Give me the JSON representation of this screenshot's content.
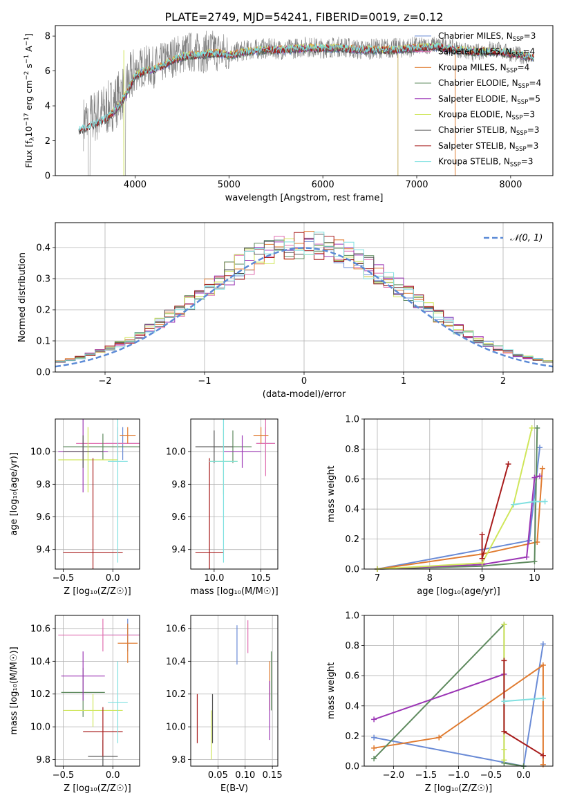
{
  "figure_title": "PLATE=2749, MJD=54241, FIBERID=0019, z=0.12",
  "models": [
    {
      "name": "Chabrier MILES",
      "nssp": "3",
      "color": "#6a8bd6"
    },
    {
      "name": "Salpeter MILES",
      "nssp": "4",
      "color": "#e06fb0"
    },
    {
      "name": "Kroupa MILES",
      "nssp": "4",
      "color": "#e07b30"
    },
    {
      "name": "Chabrier ELODIE",
      "nssp": "4",
      "color": "#5e8a5e"
    },
    {
      "name": "Salpeter ELODIE",
      "nssp": "5",
      "color": "#9b35b5"
    },
    {
      "name": "Kroupa ELODIE",
      "nssp": "3",
      "color": "#cfe65a"
    },
    {
      "name": "Chabrier STELIB",
      "nssp": "3",
      "color": "#555555"
    },
    {
      "name": "Salpeter STELIB",
      "nssp": "3",
      "color": "#a81c1c"
    },
    {
      "name": "Kroupa STELIB",
      "nssp": "3",
      "color": "#7fe0e0"
    }
  ],
  "legend_label_template": "{name}, N",
  "legend_sub": "SSP",
  "chart_data": [
    {
      "id": "spectrum",
      "type": "line",
      "xlabel": "wavelength [Angstrom, rest frame]",
      "ylabel": "Flux [f",
      "ylabel_parts": [
        "Flux [f",
        "λ",
        "10",
        "−17",
        " erg cm",
        "−2",
        " s",
        "−1",
        " A",
        "−1",
        "]"
      ],
      "xlim": [
        3150,
        8450
      ],
      "ylim": [
        0,
        8.6
      ],
      "xticks": [
        4000,
        5000,
        6000,
        7000,
        8000
      ],
      "yticks": [
        0,
        2,
        4,
        6,
        8
      ],
      "legend_position": "top-right",
      "data_curve": {
        "name": "data",
        "color": "#7f7f7f",
        "x": [
          3450,
          3500,
          3550,
          3600,
          3700,
          3800,
          3900,
          4000,
          4100,
          4200,
          4300,
          4400,
          4500,
          4600,
          4700,
          4800,
          4900,
          5000,
          5200,
          5400,
          5600,
          5800,
          6000,
          6200,
          6400,
          6600,
          6800,
          7000,
          7200,
          7400,
          7600,
          7800,
          8000,
          8200
        ],
        "y": [
          3.0,
          3.2,
          3.3,
          3.5,
          3.8,
          4.3,
          5.0,
          6.0,
          6.3,
          6.2,
          6.5,
          6.8,
          7.0,
          7.1,
          7.0,
          7.2,
          7.1,
          7.0,
          7.2,
          7.3,
          7.2,
          7.4,
          7.3,
          7.4,
          7.2,
          7.3,
          7.3,
          7.4,
          7.5,
          7.3,
          7.0,
          7.3,
          7.0,
          6.8
        ]
      },
      "model_curve": {
        "x": [
          3400,
          3500,
          3600,
          3700,
          3800,
          3900,
          4000,
          4100,
          4200,
          4300,
          4400,
          4500,
          4600,
          4700,
          4800,
          4900,
          5000,
          5200,
          5400,
          5600,
          5800,
          6000,
          6200,
          6400,
          6600,
          6800,
          7000,
          7200,
          7400,
          7600,
          7800,
          8000,
          8200
        ],
        "y": [
          2.6,
          2.8,
          3.0,
          3.3,
          3.8,
          4.6,
          5.7,
          6.0,
          6.1,
          6.3,
          6.6,
          6.8,
          6.9,
          6.9,
          7.0,
          7.0,
          6.9,
          7.1,
          7.2,
          7.2,
          7.3,
          7.3,
          7.3,
          7.2,
          7.2,
          7.2,
          7.3,
          7.4,
          7.2,
          7.1,
          7.1,
          7.0,
          6.8
        ]
      }
    },
    {
      "id": "residuals",
      "type": "histogram",
      "xlabel": "(data-model)/error",
      "ylabel": "Normed distribution",
      "xlim": [
        -2.5,
        2.5
      ],
      "ylim": [
        0,
        0.48
      ],
      "xticks": [
        -2,
        -1,
        0,
        1,
        2
      ],
      "yticks": [
        0.0,
        0.1,
        0.2,
        0.3,
        0.4
      ],
      "gaussian_label": "𝒩(0, 1)",
      "gaussian_color": "#5b8ad6",
      "bin_width": 0.1,
      "legend_position": "top-right"
    },
    {
      "id": "age-vs-Z",
      "type": "scatter",
      "xlabel": "Z [log₁₀(Z/Z☉)]",
      "ylabel": "age  [log₁₀(age/yr)]",
      "xlim": [
        -0.58,
        0.27
      ],
      "ylim": [
        9.28,
        10.2
      ],
      "xticks": [
        -0.5,
        0.0
      ],
      "yticks": [
        9.4,
        9.6,
        9.8,
        10.0
      ],
      "points": [
        {
          "x": 0.1,
          "y": 10.05,
          "xerr": 0.17,
          "yerr": 0.1
        },
        {
          "x": 0.05,
          "y": 10.05,
          "xerr": 0.42,
          "yerr": 0.1
        },
        {
          "x": 0.15,
          "y": 10.1,
          "xerr": 0.08,
          "yerr": 0.05
        },
        {
          "x": -0.1,
          "y": 10.03,
          "xerr": 0.4,
          "yerr": 0.08
        },
        {
          "x": -0.3,
          "y": 10.0,
          "xerr": 0.25,
          "yerr": 0.25
        },
        {
          "x": -0.25,
          "y": 9.95,
          "xerr": 0.3,
          "yerr": 0.2
        },
        {
          "x": -0.3,
          "y": 10.0,
          "xerr": 0.2,
          "yerr": 0.1
        },
        {
          "x": -0.2,
          "y": 9.38,
          "xerr": 0.3,
          "yerr": 0.58
        },
        {
          "x": 0.05,
          "y": 9.94,
          "xerr": 0.1,
          "yerr": 0.62
        }
      ]
    },
    {
      "id": "age-vs-mass",
      "type": "scatter",
      "xlabel": "mass [log₁₀(M/M☉)]",
      "ylabel": "",
      "xlim": [
        9.75,
        10.68
      ],
      "ylim": [
        9.28,
        10.2
      ],
      "xticks": [
        10.0,
        10.5
      ],
      "yticks": [
        9.4,
        9.6,
        9.8,
        10.0
      ],
      "points": [
        {
          "x": 10.55,
          "y": 10.05,
          "xerr": 0.1,
          "yerr": 0.1
        },
        {
          "x": 10.55,
          "y": 10.05,
          "xerr": 0.1,
          "yerr": 0.2
        },
        {
          "x": 10.5,
          "y": 10.1,
          "xerr": 0.08,
          "yerr": 0.05
        },
        {
          "x": 10.2,
          "y": 10.03,
          "xerr": 0.2,
          "yerr": 0.1
        },
        {
          "x": 10.3,
          "y": 10.0,
          "xerr": 0.2,
          "yerr": 0.1
        },
        {
          "x": 10.1,
          "y": 9.94,
          "xerr": 0.15,
          "yerr": 0.2
        },
        {
          "x": 10.0,
          "y": 10.03,
          "xerr": 0.2,
          "yerr": 0.1
        },
        {
          "x": 9.95,
          "y": 9.38,
          "xerr": 0.15,
          "yerr": 0.58
        },
        {
          "x": 10.1,
          "y": 9.94,
          "xerr": 0.15,
          "yerr": 0.62
        }
      ]
    },
    {
      "id": "weight-vs-age",
      "type": "line",
      "xlabel": "age  [log₁₀(age/yr)]",
      "ylabel": "mass weight",
      "xlim": [
        6.75,
        10.35
      ],
      "ylim": [
        0,
        1
      ],
      "xticks": [
        7,
        8,
        9,
        10
      ],
      "yticks": [
        0.0,
        0.2,
        0.4,
        0.6,
        0.8,
        1.0
      ],
      "series": [
        {
          "name": "Chabrier MILES",
          "x": [
            7.0,
            9.0,
            9.9,
            10.1
          ],
          "y": [
            0.0,
            0.13,
            0.19,
            0.81
          ]
        },
        {
          "name": "Kroupa MILES",
          "x": [
            7.0,
            9.0,
            10.05,
            10.15
          ],
          "y": [
            0.0,
            0.1,
            0.18,
            0.67
          ]
        },
        {
          "name": "Chabrier ELODIE",
          "x": [
            7.0,
            9.0,
            10.0,
            10.05
          ],
          "y": [
            0.0,
            0.02,
            0.05,
            0.94
          ]
        },
        {
          "name": "Salpeter ELODIE",
          "x": [
            7.0,
            9.0,
            9.85,
            10.0,
            10.1
          ],
          "y": [
            0.0,
            0.03,
            0.08,
            0.61,
            0.62
          ]
        },
        {
          "name": "Kroupa ELODIE",
          "x": [
            7.0,
            9.0,
            9.6,
            9.95
          ],
          "y": [
            0.0,
            0.04,
            0.43,
            0.94
          ]
        },
        {
          "name": "Salpeter STELIB",
          "x": [
            9.0,
            9.0,
            9.5
          ],
          "y": [
            0.23,
            0.07,
            0.7
          ]
        },
        {
          "name": "Kroupa STELIB",
          "x": [
            9.6,
            10.0,
            10.2
          ],
          "y": [
            0.43,
            0.45,
            0.45
          ]
        }
      ]
    },
    {
      "id": "mass-vs-Z",
      "type": "scatter",
      "xlabel": "Z [log₁₀(Z/Z☉)]",
      "ylabel": "mass [log₁₀(M/M☉)]",
      "xlim": [
        -0.58,
        0.27
      ],
      "ylim": [
        9.76,
        10.68
      ],
      "xticks": [
        -0.5,
        0.0
      ],
      "yticks": [
        9.8,
        10.0,
        10.2,
        10.4,
        10.6
      ],
      "points": [
        {
          "x": 0.15,
          "y": 10.56,
          "xerr": 0.25,
          "yerr": 0.1
        },
        {
          "x": -0.1,
          "y": 10.56,
          "xerr": 0.45,
          "yerr": 0.1
        },
        {
          "x": 0.15,
          "y": 10.51,
          "xerr": 0.1,
          "yerr": 0.12
        },
        {
          "x": -0.3,
          "y": 10.21,
          "xerr": 0.22,
          "yerr": 0.15
        },
        {
          "x": -0.3,
          "y": 10.31,
          "xerr": 0.22,
          "yerr": 0.15
        },
        {
          "x": -0.2,
          "y": 10.1,
          "xerr": 0.3,
          "yerr": 0.1
        },
        {
          "x": -0.1,
          "y": 9.82,
          "xerr": 0.15,
          "yerr": 0.1
        },
        {
          "x": -0.1,
          "y": 9.97,
          "xerr": 0.2,
          "yerr": 0.15
        },
        {
          "x": 0.05,
          "y": 10.15,
          "xerr": 0.1,
          "yerr": 0.25
        }
      ]
    },
    {
      "id": "mass-vs-ebv",
      "type": "scatter",
      "xlabel": "E(B-V)",
      "ylabel": "",
      "xlim": [
        0.0,
        0.16
      ],
      "ylim": [
        9.76,
        10.68
      ],
      "xticks": [
        0.05,
        0.1,
        0.15
      ],
      "yticks": [
        9.8,
        10.0,
        10.2,
        10.4,
        10.6
      ],
      "points": [
        {
          "x": 0.085,
          "y": 10.5,
          "yerr": 0.12
        },
        {
          "x": 0.105,
          "y": 10.55,
          "yerr": 0.1
        },
        {
          "x": 0.145,
          "y": 10.25,
          "yerr": 0.15
        },
        {
          "x": 0.148,
          "y": 10.28,
          "yerr": 0.18
        },
        {
          "x": 0.145,
          "y": 10.1,
          "yerr": 0.18
        },
        {
          "x": 0.038,
          "y": 9.95,
          "yerr": 0.15
        },
        {
          "x": 0.04,
          "y": 10.05,
          "yerr": 0.15
        },
        {
          "x": 0.012,
          "y": 10.05,
          "yerr": 0.15
        }
      ]
    },
    {
      "id": "weight-vs-Z",
      "type": "line",
      "xlabel": "Z [log₁₀(Z/Z☉)]",
      "ylabel": "mass weight",
      "xlim": [
        -2.45,
        0.45
      ],
      "ylim": [
        0,
        1
      ],
      "xticks": [
        -2.0,
        -1.5,
        -1.0,
        -0.5,
        0.0
      ],
      "yticks": [
        0.0,
        0.2,
        0.4,
        0.6,
        0.8,
        1.0
      ],
      "series": [
        {
          "name": "Chabrier MILES",
          "x": [
            -2.3,
            0.0,
            0.3
          ],
          "y": [
            0.19,
            0.0,
            0.81
          ]
        },
        {
          "name": "Kroupa MILES",
          "x": [
            -2.3,
            -1.3,
            0.3,
            0.3
          ],
          "y": [
            0.12,
            0.19,
            0.67,
            0.01
          ]
        },
        {
          "name": "Chabrier ELODIE",
          "x": [
            -2.3,
            -0.3,
            -0.3,
            0.0
          ],
          "y": [
            0.05,
            0.94,
            0.02,
            0.0
          ]
        },
        {
          "name": "Salpeter ELODIE",
          "x": [
            -2.3,
            -0.3
          ],
          "y": [
            0.31,
            0.61
          ]
        },
        {
          "name": "Kroupa ELODIE",
          "x": [
            -0.3,
            -0.3,
            -0.3
          ],
          "y": [
            0.94,
            0.04,
            0.11
          ]
        },
        {
          "name": "Salpeter STELIB",
          "x": [
            -0.3,
            -0.3,
            0.3
          ],
          "y": [
            0.7,
            0.23,
            0.07
          ]
        },
        {
          "name": "Kroupa STELIB",
          "x": [
            -0.3,
            0.3
          ],
          "y": [
            0.43,
            0.45
          ]
        }
      ]
    }
  ]
}
